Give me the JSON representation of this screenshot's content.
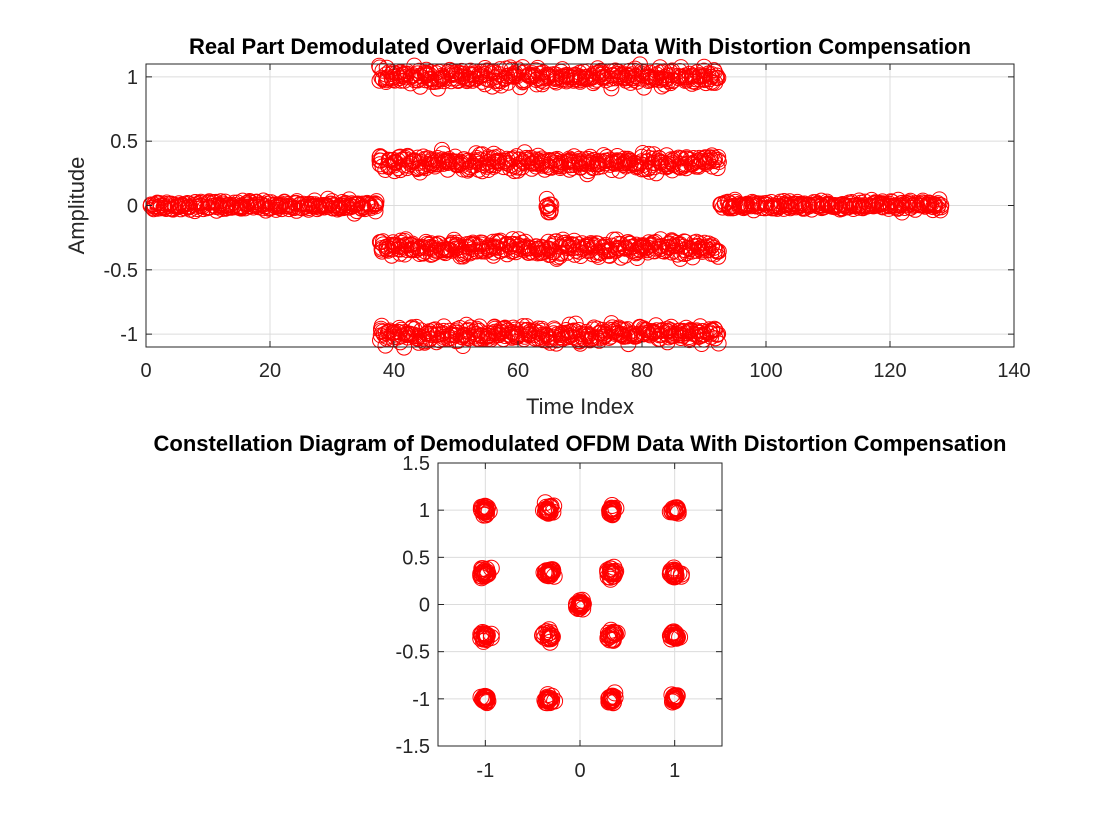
{
  "colors": {
    "marker": "#ff0000",
    "grid": "#dcdcdc",
    "axis": "#262626"
  },
  "chart_data": [
    {
      "type": "scatter",
      "title": "Real Part Demodulated Overlaid OFDM Data With Distortion Compensation",
      "xlabel": "Time Index",
      "ylabel": "Amplitude",
      "xlim": [
        0,
        140
      ],
      "ylim": [
        -1.1,
        1.1
      ],
      "xticks": [
        0,
        20,
        40,
        60,
        80,
        100,
        120,
        140
      ],
      "yticks": [
        -1,
        -0.5,
        0,
        0.5,
        1
      ],
      "grid": true,
      "marker": "o",
      "series": [
        {
          "x": [
            1,
            37
          ],
          "y": 0,
          "spread": 0.04,
          "description": "guard band, left"
        },
        {
          "x": [
            38,
            92
          ],
          "y": 1,
          "spread": 0.07
        },
        {
          "x": [
            38,
            92
          ],
          "y": 0.333,
          "spread": 0.07
        },
        {
          "x": [
            38,
            92
          ],
          "y": -0.333,
          "spread": 0.07
        },
        {
          "x": [
            38,
            92
          ],
          "y": -1,
          "spread": 0.07
        },
        {
          "x": [
            65,
            65
          ],
          "y": 0,
          "spread": 0.1,
          "description": "DC subcarrier"
        },
        {
          "x": [
            93,
            128
          ],
          "y": 0,
          "spread": 0.04,
          "description": "guard band, right"
        }
      ]
    },
    {
      "type": "scatter",
      "title": "Constellation Diagram of Demodulated OFDM Data With Distortion Compensation",
      "xlabel": "",
      "ylabel": "",
      "xlim": [
        -1.5,
        1.5
      ],
      "ylim": [
        -1.5,
        1.5
      ],
      "xticks": [
        -1,
        0,
        1
      ],
      "yticks": [
        -1.5,
        -1,
        -0.5,
        0,
        0.5,
        1,
        1.5
      ],
      "grid": true,
      "marker": "o",
      "clusters": [
        [
          -1,
          1
        ],
        [
          -0.333,
          1
        ],
        [
          0.333,
          1
        ],
        [
          1,
          1
        ],
        [
          -1,
          0.333
        ],
        [
          -0.333,
          0.333
        ],
        [
          0.333,
          0.333
        ],
        [
          1,
          0.333
        ],
        [
          -1,
          -0.333
        ],
        [
          -0.333,
          -0.333
        ],
        [
          0.333,
          -0.333
        ],
        [
          1,
          -0.333
        ],
        [
          -1,
          -1
        ],
        [
          -0.333,
          -1
        ],
        [
          0.333,
          -1
        ],
        [
          1,
          -1
        ],
        [
          0,
          0
        ]
      ],
      "cluster_spread": 0.05
    }
  ]
}
